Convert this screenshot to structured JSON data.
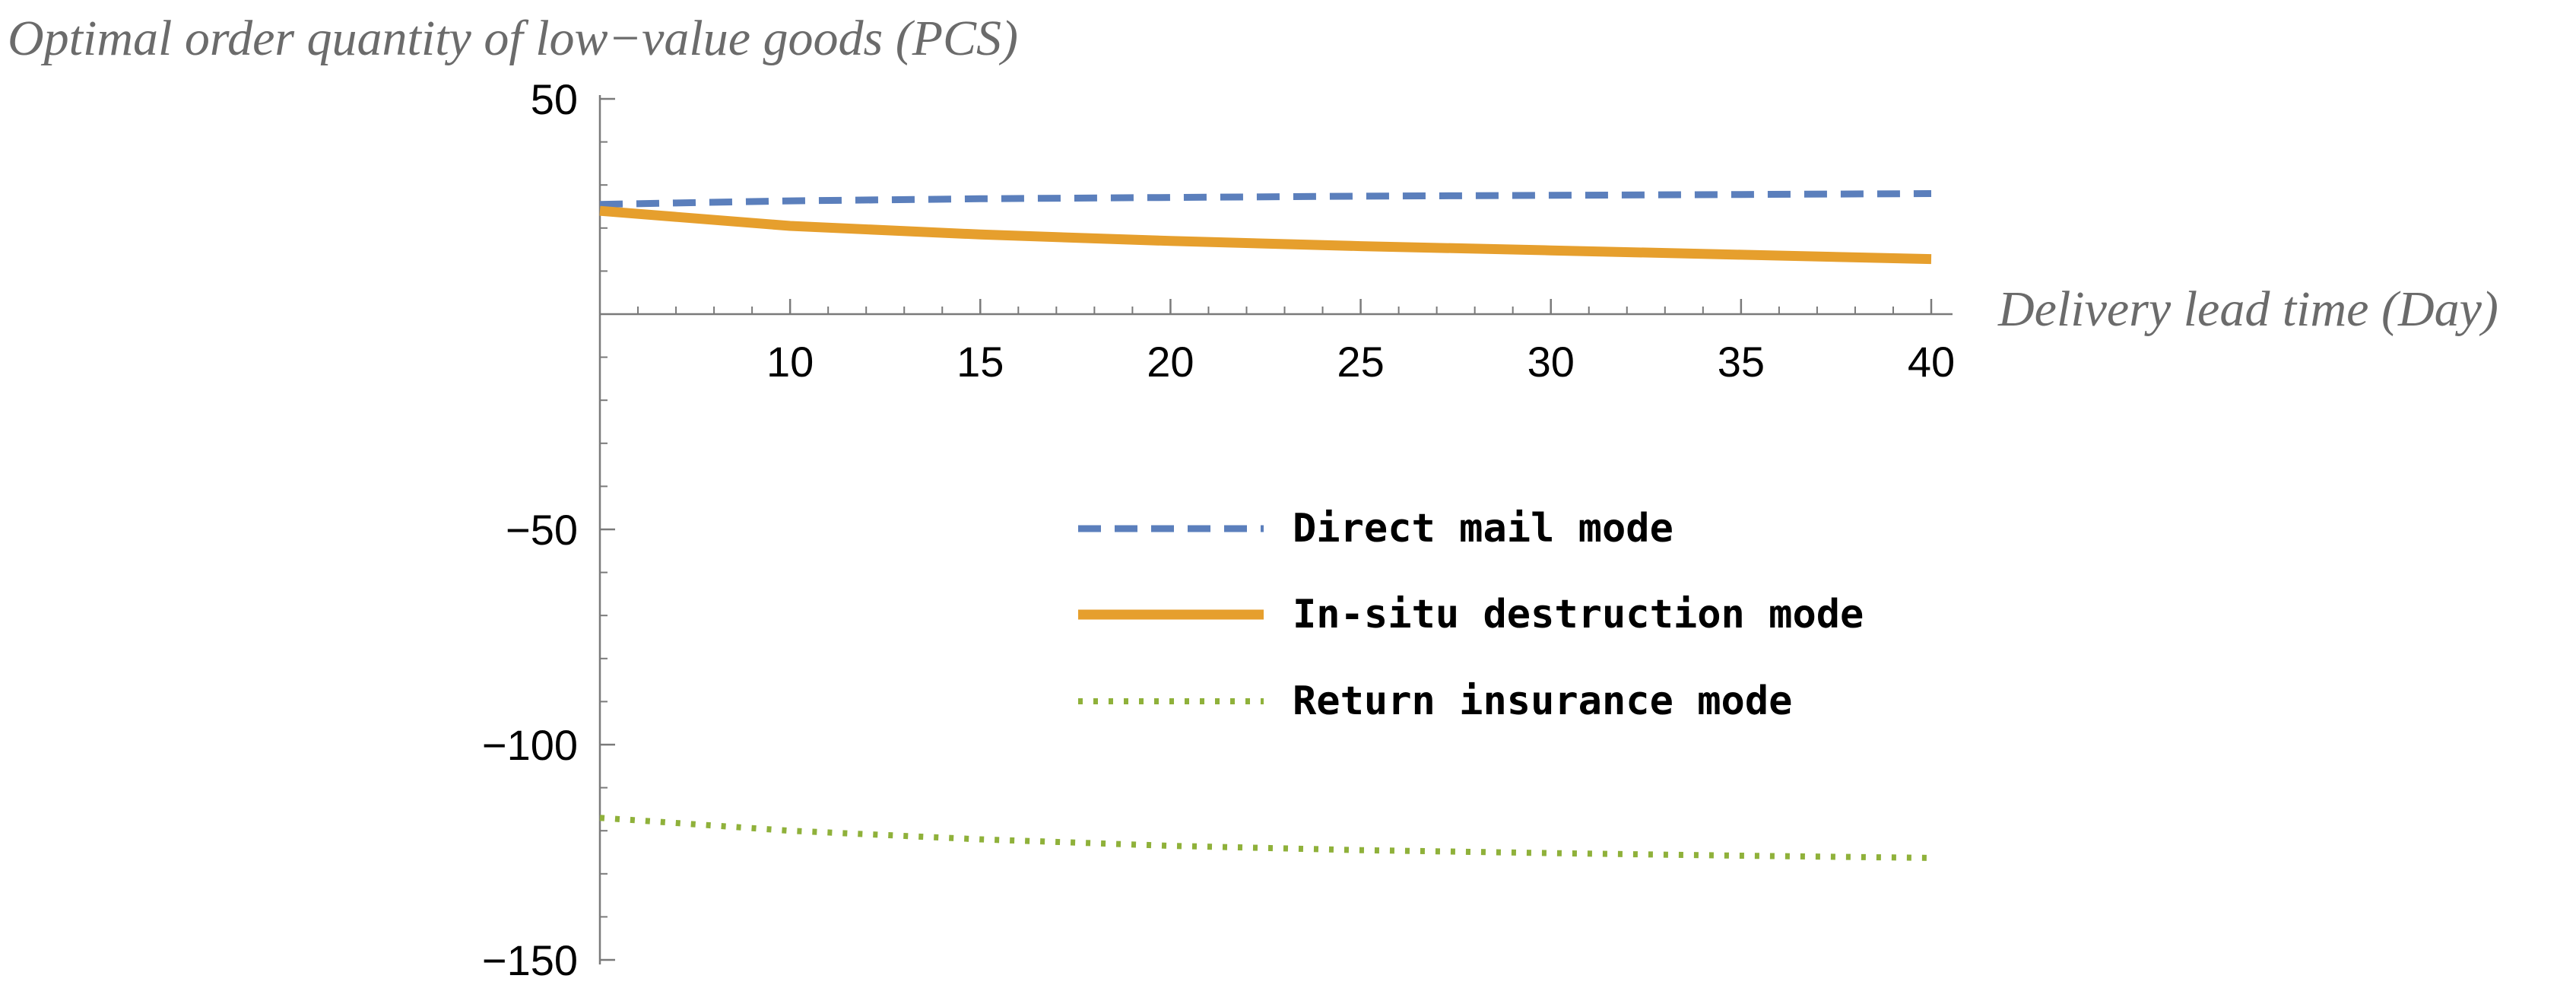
{
  "chart_data": {
    "type": "line",
    "ylabel_main": "Optimal order quantity of low",
    "ylabel_dash": "−",
    "ylabel_tail": "value goods (PCS)",
    "xlabel": "Delivery lead time (Day)",
    "xlim": [
      5,
      40
    ],
    "ylim": [
      -150,
      50
    ],
    "x_ticks": [
      10,
      15,
      20,
      25,
      30,
      35,
      40
    ],
    "x_tick_labels": [
      "10",
      "15",
      "20",
      "25",
      "30",
      "35",
      "40"
    ],
    "y_ticks": [
      50,
      -50,
      -100,
      -150
    ],
    "y_tick_labels": [
      "50",
      "−50",
      "−100",
      "−150"
    ],
    "grid": false,
    "legend_position": "center-right",
    "series": [
      {
        "name": "Direct mail mode",
        "style": "dashed",
        "color": "#5b7fbc",
        "x": [
          5,
          10,
          15,
          20,
          25,
          30,
          35,
          40
        ],
        "y": [
          25.5,
          26.3,
          26.8,
          27.1,
          27.4,
          27.6,
          27.8,
          28.0
        ]
      },
      {
        "name": "In-situ destruction mode",
        "style": "solid",
        "color": "#e69f2d",
        "x": [
          5,
          10,
          15,
          20,
          25,
          30,
          35,
          40
        ],
        "y": [
          24.0,
          20.5,
          18.5,
          17.0,
          15.8,
          14.8,
          13.8,
          12.8
        ]
      },
      {
        "name": "Return insurance mode",
        "style": "dotted",
        "color": "#8fb13a",
        "x": [
          5,
          10,
          15,
          20,
          25,
          30,
          35,
          40
        ],
        "y": [
          -117.0,
          -120.0,
          -122.0,
          -123.5,
          -124.5,
          -125.2,
          -125.8,
          -126.3
        ]
      }
    ]
  }
}
